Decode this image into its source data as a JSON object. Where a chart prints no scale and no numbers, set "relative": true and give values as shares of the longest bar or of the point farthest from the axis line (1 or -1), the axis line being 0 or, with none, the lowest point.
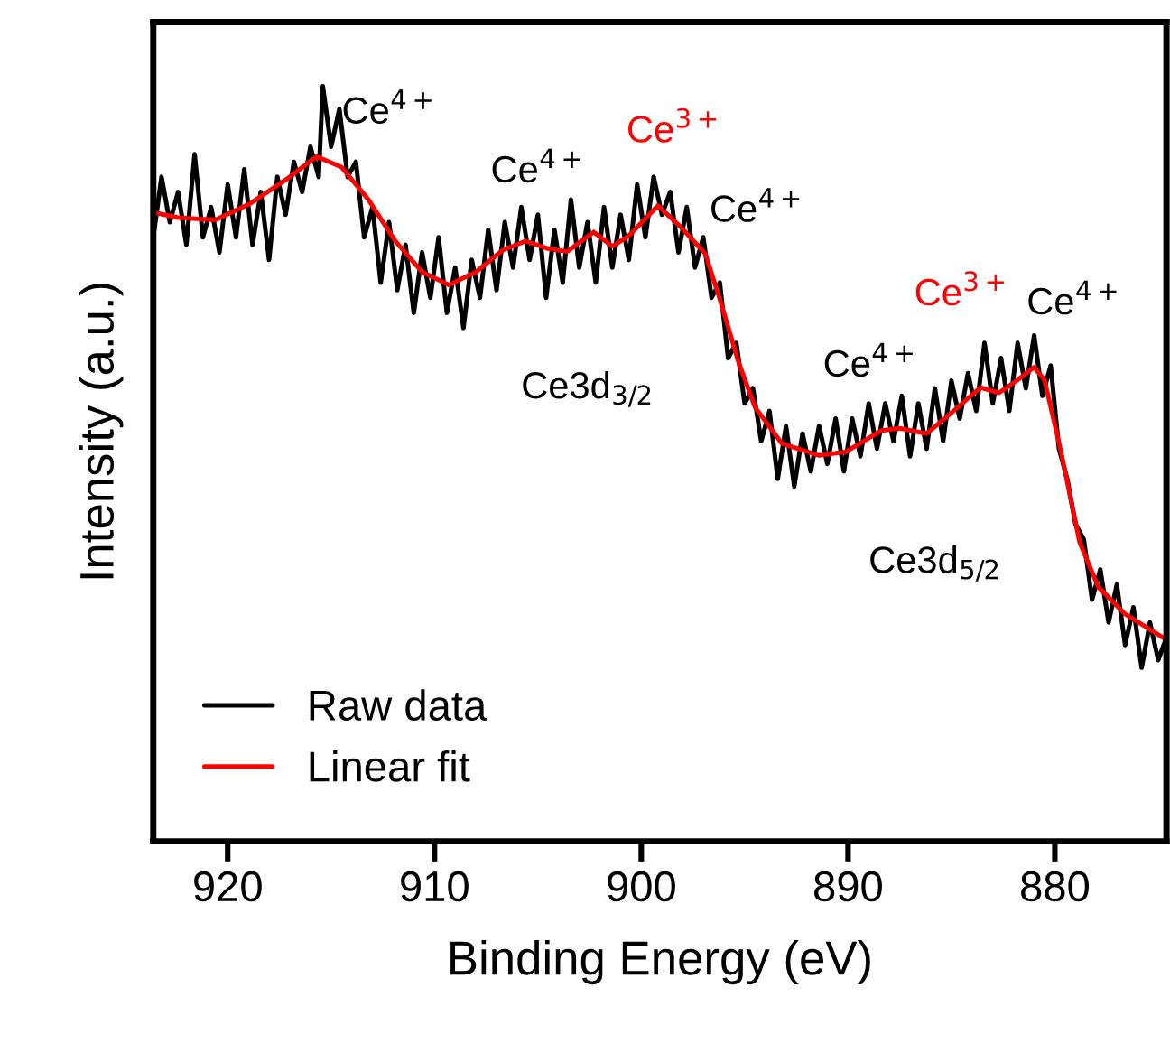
{
  "chart_data": {
    "type": "line",
    "xlabel": "Binding Energy (eV)",
    "ylabel": "Intensity (a.u.)",
    "relative": true,
    "xlim": [
      923.6,
      874.6
    ],
    "xticks": [
      920,
      910,
      900,
      890,
      880
    ],
    "grid": false,
    "legend": "bottom left",
    "tick_labels": "x",
    "line_style": "solid",
    "marker": "none",
    "series": [
      {
        "name": "Raw data",
        "color": "#000000",
        "x": [
          923.6,
          923.2,
          922.8,
          922.4,
          922.0,
          921.6,
          921.2,
          920.8,
          920.4,
          920.0,
          919.6,
          919.2,
          918.8,
          918.4,
          918.0,
          917.6,
          917.2,
          916.8,
          916.4,
          916.0,
          915.6,
          915.4,
          915.0,
          914.6,
          914.2,
          913.8,
          913.4,
          913.0,
          912.6,
          912.2,
          911.8,
          911.4,
          911.0,
          910.6,
          910.2,
          909.8,
          909.4,
          909.0,
          908.6,
          908.2,
          907.8,
          907.4,
          907.0,
          906.6,
          906.2,
          905.8,
          905.4,
          905.0,
          904.6,
          904.2,
          903.8,
          903.4,
          903.0,
          902.6,
          902.2,
          901.8,
          901.4,
          901.0,
          900.6,
          900.2,
          899.8,
          899.4,
          899.0,
          898.6,
          898.2,
          897.8,
          897.4,
          897.0,
          896.6,
          896.2,
          895.8,
          895.4,
          895.0,
          894.6,
          894.2,
          893.8,
          893.4,
          893.0,
          892.6,
          892.2,
          891.8,
          891.4,
          891.0,
          890.6,
          890.2,
          889.8,
          889.4,
          889.0,
          888.6,
          888.2,
          887.8,
          887.4,
          887.0,
          886.6,
          886.2,
          885.8,
          885.4,
          885.0,
          884.6,
          884.2,
          883.8,
          883.4,
          883.0,
          882.6,
          882.2,
          881.8,
          881.4,
          881.0,
          880.6,
          880.2,
          879.8,
          879.4,
          879.0,
          878.6,
          878.2,
          877.8,
          877.4,
          877.0,
          876.6,
          876.2,
          875.8,
          875.4,
          875.0,
          874.6
        ],
        "values": [
          0.8,
          0.88,
          0.82,
          0.86,
          0.79,
          0.91,
          0.8,
          0.84,
          0.78,
          0.87,
          0.8,
          0.89,
          0.79,
          0.86,
          0.77,
          0.88,
          0.83,
          0.9,
          0.86,
          0.92,
          0.88,
          1.0,
          0.92,
          0.97,
          0.88,
          0.9,
          0.8,
          0.84,
          0.74,
          0.82,
          0.73,
          0.79,
          0.7,
          0.78,
          0.72,
          0.8,
          0.7,
          0.76,
          0.68,
          0.77,
          0.72,
          0.81,
          0.73,
          0.82,
          0.76,
          0.84,
          0.77,
          0.83,
          0.72,
          0.81,
          0.74,
          0.85,
          0.76,
          0.82,
          0.74,
          0.84,
          0.76,
          0.83,
          0.77,
          0.87,
          0.8,
          0.88,
          0.83,
          0.86,
          0.78,
          0.84,
          0.76,
          0.8,
          0.72,
          0.74,
          0.64,
          0.66,
          0.58,
          0.6,
          0.53,
          0.57,
          0.48,
          0.55,
          0.47,
          0.54,
          0.49,
          0.55,
          0.5,
          0.56,
          0.49,
          0.56,
          0.51,
          0.58,
          0.52,
          0.58,
          0.53,
          0.59,
          0.51,
          0.58,
          0.52,
          0.6,
          0.53,
          0.61,
          0.56,
          0.62,
          0.57,
          0.66,
          0.58,
          0.64,
          0.57,
          0.66,
          0.6,
          0.67,
          0.59,
          0.63,
          0.52,
          0.48,
          0.42,
          0.4,
          0.32,
          0.36,
          0.29,
          0.34,
          0.26,
          0.31,
          0.23,
          0.29,
          0.24,
          0.27
        ]
      },
      {
        "name": "Linear fit",
        "color": "#ff0000",
        "x": [
          923.6,
          922.4,
          920.6,
          918.9,
          917.1,
          915.7,
          914.5,
          913.2,
          911.9,
          910.6,
          909.3,
          908.0,
          906.7,
          905.6,
          904.5,
          903.6,
          902.3,
          901.4,
          900.6,
          899.2,
          898.1,
          896.9,
          896.2,
          895.3,
          894.5,
          893.2,
          891.4,
          890.1,
          888.4,
          887.5,
          886.2,
          884.9,
          883.6,
          882.7,
          881.8,
          881.0,
          880.5,
          879.7,
          878.8,
          877.9,
          876.6,
          874.6
        ],
        "values": [
          0.833,
          0.826,
          0.823,
          0.845,
          0.878,
          0.907,
          0.893,
          0.85,
          0.795,
          0.754,
          0.737,
          0.754,
          0.783,
          0.795,
          0.785,
          0.781,
          0.807,
          0.788,
          0.802,
          0.842,
          0.814,
          0.778,
          0.718,
          0.635,
          0.575,
          0.527,
          0.511,
          0.516,
          0.544,
          0.547,
          0.54,
          0.57,
          0.601,
          0.594,
          0.611,
          0.628,
          0.611,
          0.516,
          0.396,
          0.337,
          0.301,
          0.267
        ]
      }
    ],
    "annotations": [
      "Ce$^{4+}$",
      "Ce$^{4+}$",
      "Ce$^{3+}$",
      "Ce$^{4+}$",
      "Ce3d$_{3/2}$",
      "Ce$^{4+}$",
      "Ce$^{3+}$",
      "Ce$^{4+}$",
      "Ce3d$_{5/2}$"
    ]
  }
}
